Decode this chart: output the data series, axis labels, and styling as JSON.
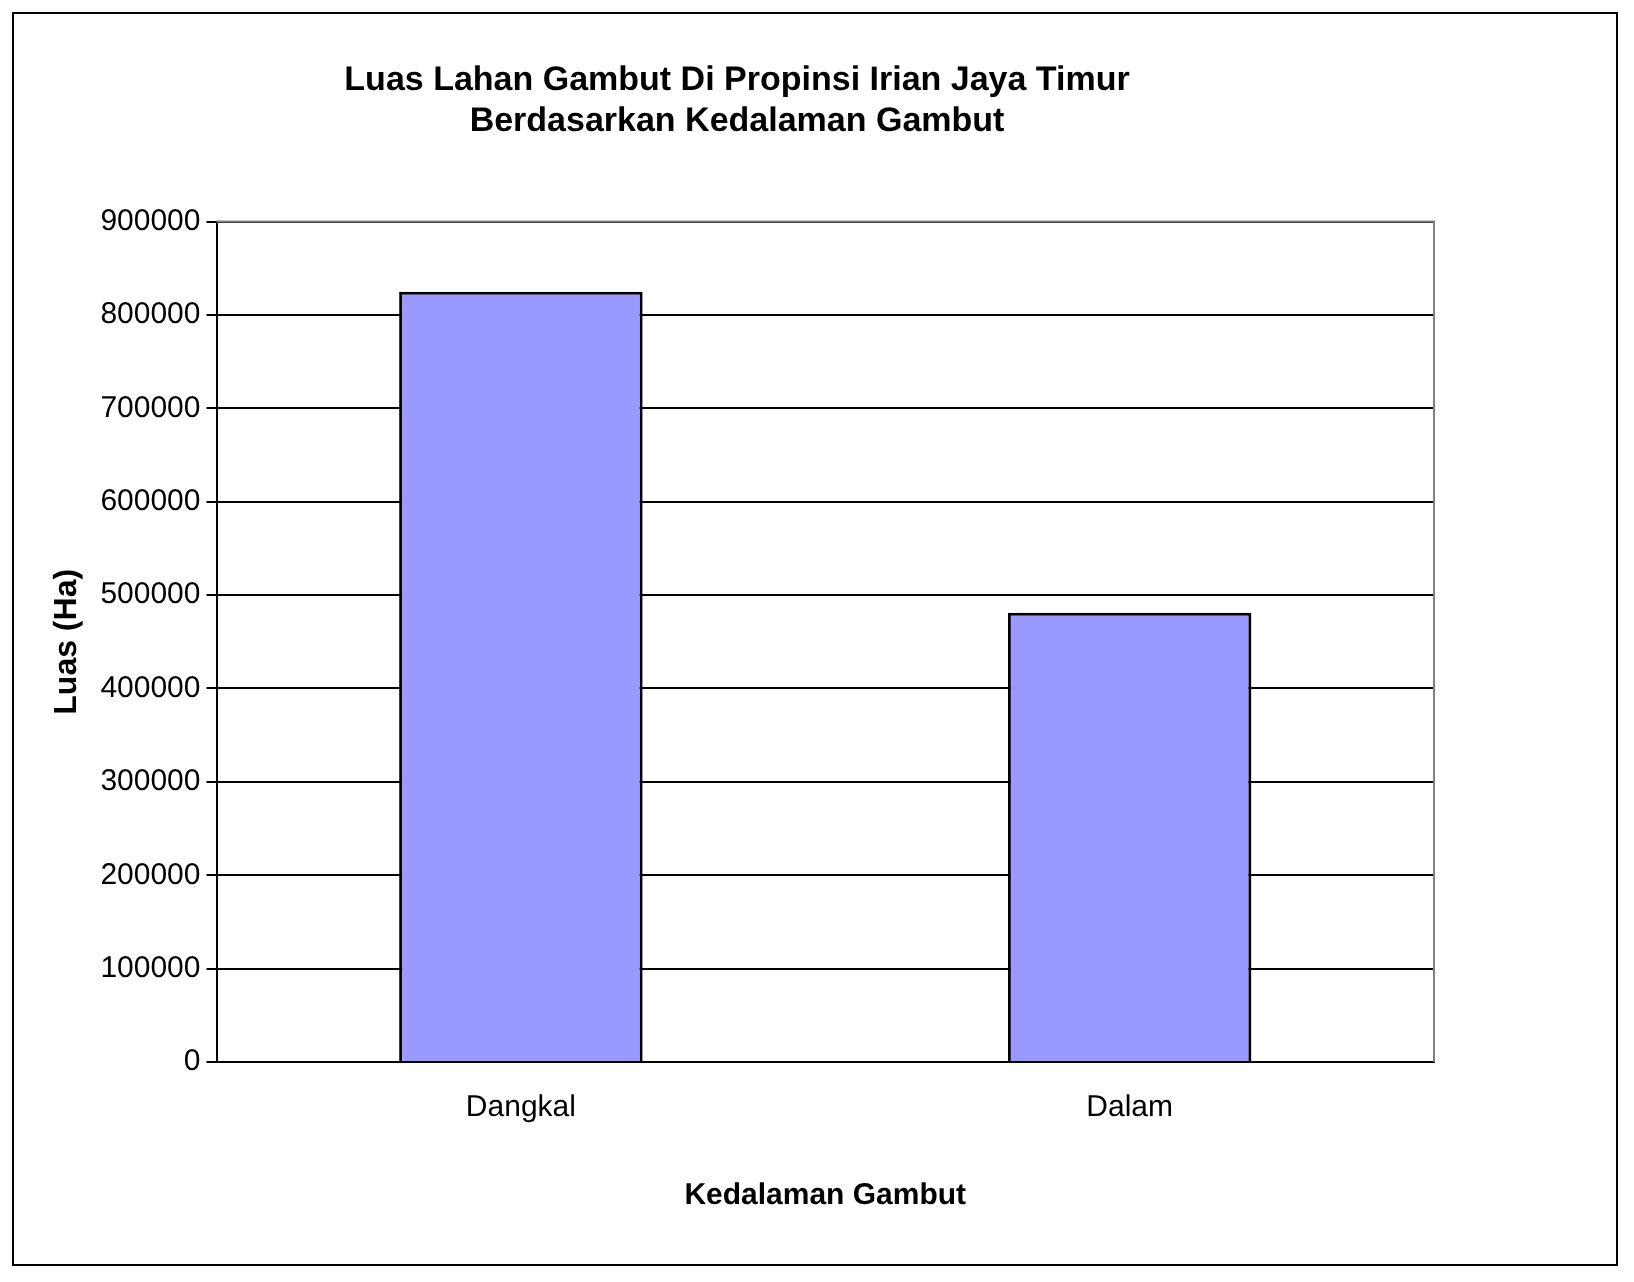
{
  "chart_data": {
    "type": "bar",
    "title": [
      "Luas Lahan Gambut Di Propinsi Irian Jaya Timur",
      "Berdasarkan Kedalaman Gambut"
    ],
    "xlabel": "Kedalaman Gambut",
    "ylabel": "Luas (Ha)",
    "categories": [
      "Dangkal",
      "Dalam"
    ],
    "values": [
      825000,
      481000
    ],
    "color": "#9999ff",
    "ylim": [
      0,
      900000
    ],
    "yticks": [
      0,
      100000,
      200000,
      300000,
      400000,
      500000,
      600000,
      700000,
      800000,
      900000
    ],
    "grid": "y",
    "legend": false
  }
}
